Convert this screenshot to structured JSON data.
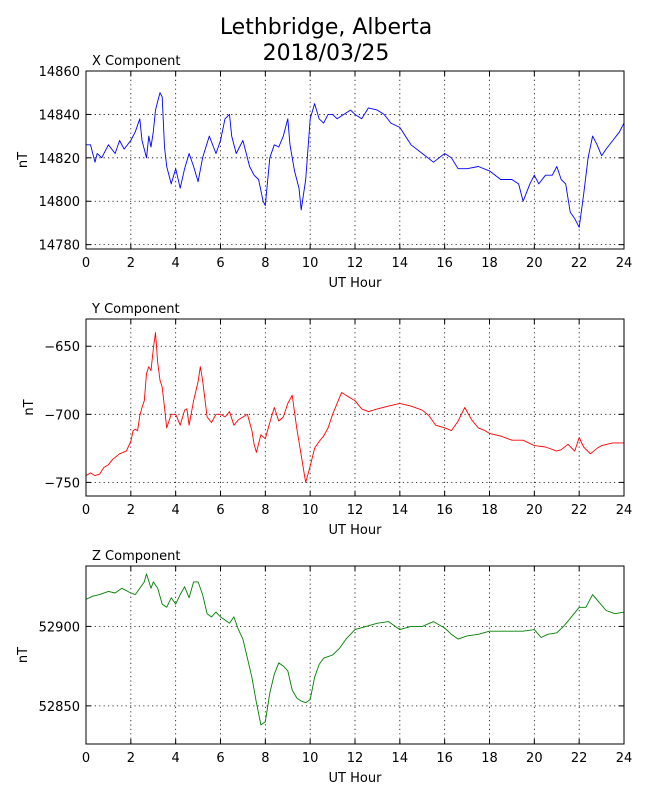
{
  "figure": {
    "title_line1": "Lethbridge, Alberta",
    "title_line2": "2018/03/25"
  },
  "chart_data": [
    {
      "type": "line",
      "panel_title": "X Component",
      "xlabel": "UT Hour",
      "ylabel": "nT",
      "xlim": [
        0,
        24
      ],
      "ylim": [
        14778,
        14860
      ],
      "xticks": [
        0,
        2,
        4,
        6,
        8,
        10,
        12,
        14,
        16,
        18,
        20,
        22,
        24
      ],
      "yticks": [
        14780,
        14800,
        14820,
        14840,
        14860
      ],
      "grid": true,
      "color": "#0000ff",
      "series": [
        {
          "x": [
            0,
            0.2,
            0.4,
            0.5,
            0.7,
            1.0,
            1.3,
            1.5,
            1.7,
            2.0,
            2.2,
            2.4,
            2.5,
            2.7,
            2.8,
            2.9,
            3.0,
            3.1,
            3.2,
            3.3,
            3.4,
            3.5,
            3.6,
            3.8,
            4.0,
            4.2,
            4.4,
            4.6,
            4.8,
            5.0,
            5.2,
            5.5,
            5.8,
            6.0,
            6.2,
            6.4,
            6.5,
            6.7,
            7.0,
            7.3,
            7.5,
            7.7,
            7.9,
            8.0,
            8.2,
            8.4,
            8.6,
            8.8,
            9.0,
            9.1,
            9.3,
            9.5,
            9.6,
            9.8,
            10.0,
            10.2,
            10.4,
            10.6,
            10.8,
            11.0,
            11.2,
            11.5,
            11.8,
            12.0,
            12.3,
            12.6,
            13.0,
            13.3,
            13.6,
            14.0,
            14.5,
            15.0,
            15.5,
            16.0,
            16.3,
            16.6,
            17.0,
            17.5,
            18.0,
            18.5,
            19.0,
            19.3,
            19.5,
            19.8,
            20.0,
            20.2,
            20.5,
            20.8,
            21.0,
            21.2,
            21.4,
            21.6,
            21.8,
            22.0,
            22.2,
            22.4,
            22.6,
            22.8,
            23.0,
            23.2,
            23.5,
            23.8,
            24.0
          ],
          "values": [
            14826,
            14826,
            14818,
            14822,
            14820,
            14826,
            14822,
            14828,
            14824,
            14828,
            14832,
            14838,
            14828,
            14820,
            14830,
            14825,
            14832,
            14842,
            14846,
            14850,
            14848,
            14825,
            14816,
            14808,
            14815,
            14806,
            14815,
            14822,
            14816,
            14809,
            14820,
            14830,
            14822,
            14828,
            14838,
            14840,
            14830,
            14822,
            14828,
            14816,
            14812,
            14810,
            14800,
            14798,
            14820,
            14826,
            14825,
            14830,
            14838,
            14826,
            14814,
            14806,
            14796,
            14810,
            14838,
            14845,
            14838,
            14836,
            14840,
            14840,
            14838,
            14840,
            14842,
            14840,
            14838,
            14843,
            14842,
            14840,
            14836,
            14834,
            14826,
            14822,
            14818,
            14822,
            14820,
            14815,
            14815,
            14816,
            14814,
            14810,
            14810,
            14808,
            14800,
            14808,
            14812,
            14808,
            14812,
            14812,
            14816,
            14810,
            14808,
            14795,
            14792,
            14788,
            14803,
            14820,
            14830,
            14826,
            14821,
            14824,
            14828,
            14832,
            14836
          ]
        }
      ]
    },
    {
      "type": "line",
      "panel_title": "Y Component",
      "xlabel": "UT Hour",
      "ylabel": "nT",
      "xlim": [
        0,
        24
      ],
      "ylim": [
        -760,
        -630
      ],
      "xticks": [
        0,
        2,
        4,
        6,
        8,
        10,
        12,
        14,
        16,
        18,
        20,
        22,
        24
      ],
      "yticks": [
        -650,
        -700,
        -750
      ],
      "grid": true,
      "color": "#ff0000",
      "series": [
        {
          "x": [
            0,
            0.2,
            0.4,
            0.6,
            0.8,
            1.0,
            1.2,
            1.5,
            1.8,
            2.0,
            2.1,
            2.2,
            2.3,
            2.4,
            2.5,
            2.6,
            2.7,
            2.8,
            2.9,
            3.0,
            3.1,
            3.2,
            3.3,
            3.4,
            3.5,
            3.6,
            3.8,
            4.0,
            4.2,
            4.4,
            4.5,
            4.6,
            4.8,
            5.0,
            5.1,
            5.2,
            5.4,
            5.6,
            5.8,
            6.0,
            6.2,
            6.4,
            6.6,
            6.8,
            7.0,
            7.2,
            7.4,
            7.5,
            7.6,
            7.8,
            8.0,
            8.2,
            8.4,
            8.6,
            8.8,
            9.0,
            9.2,
            9.4,
            9.6,
            9.7,
            9.8,
            10.0,
            10.2,
            10.4,
            10.6,
            10.8,
            11.0,
            11.2,
            11.4,
            11.6,
            11.8,
            12.0,
            12.3,
            12.6,
            13.0,
            13.5,
            14.0,
            14.5,
            15.0,
            15.3,
            15.6,
            16.0,
            16.3,
            16.6,
            16.9,
            17.2,
            17.5,
            17.8,
            18.0,
            18.5,
            19.0,
            19.5,
            20.0,
            20.5,
            21.0,
            21.2,
            21.5,
            21.8,
            22.0,
            22.2,
            22.5,
            22.8,
            23.0,
            23.5,
            24.0
          ],
          "values": [
            -745,
            -743,
            -745,
            -744,
            -739,
            -737,
            -733,
            -729,
            -727,
            -720,
            -712,
            -711,
            -712,
            -701,
            -695,
            -690,
            -670,
            -665,
            -668,
            -652,
            -640,
            -662,
            -675,
            -680,
            -695,
            -710,
            -700,
            -700,
            -708,
            -697,
            -696,
            -708,
            -690,
            -676,
            -665,
            -675,
            -702,
            -706,
            -700,
            -700,
            -702,
            -698,
            -708,
            -704,
            -702,
            -700,
            -712,
            -722,
            -728,
            -715,
            -718,
            -706,
            -695,
            -705,
            -702,
            -692,
            -686,
            -710,
            -730,
            -740,
            -750,
            -738,
            -725,
            -720,
            -716,
            -710,
            -700,
            -692,
            -684,
            -686,
            -688,
            -690,
            -696,
            -698,
            -696,
            -694,
            -692,
            -694,
            -697,
            -701,
            -708,
            -710,
            -712,
            -705,
            -695,
            -704,
            -710,
            -712,
            -714,
            -716,
            -719,
            -719,
            -723,
            -724,
            -727,
            -726,
            -722,
            -727,
            -717,
            -724,
            -729,
            -725,
            -723,
            -721,
            -721
          ]
        }
      ]
    },
    {
      "type": "line",
      "panel_title": "Z Component",
      "xlabel": "UT Hour",
      "ylabel": "nT",
      "xlim": [
        0,
        24
      ],
      "ylim": [
        52826,
        52938
      ],
      "xticks": [
        0,
        2,
        4,
        6,
        8,
        10,
        12,
        14,
        16,
        18,
        20,
        22,
        24
      ],
      "yticks": [
        52850,
        52900
      ],
      "grid": true,
      "color": "#008000",
      "series": [
        {
          "x": [
            0,
            0.3,
            0.6,
            1.0,
            1.3,
            1.6,
            2.0,
            2.2,
            2.4,
            2.6,
            2.7,
            2.9,
            3.0,
            3.2,
            3.4,
            3.6,
            3.8,
            4.0,
            4.2,
            4.4,
            4.6,
            4.8,
            5.0,
            5.2,
            5.4,
            5.6,
            5.8,
            6.0,
            6.2,
            6.4,
            6.6,
            6.8,
            7.0,
            7.2,
            7.4,
            7.6,
            7.8,
            8.0,
            8.2,
            8.4,
            8.6,
            8.8,
            9.0,
            9.2,
            9.4,
            9.6,
            9.8,
            10.0,
            10.2,
            10.4,
            10.6,
            10.8,
            11.0,
            11.3,
            11.6,
            12.0,
            12.5,
            13.0,
            13.5,
            14.0,
            14.5,
            15.0,
            15.5,
            16.0,
            16.3,
            16.6,
            17.0,
            17.5,
            18.0,
            18.5,
            19.0,
            19.5,
            20.0,
            20.3,
            20.6,
            21.0,
            21.3,
            21.6,
            22.0,
            22.3,
            22.6,
            22.9,
            23.2,
            23.6,
            24.0
          ],
          "values": [
            52917,
            52919,
            52920,
            52922,
            52921,
            52924,
            52921,
            52920,
            52924,
            52928,
            52933,
            52924,
            52928,
            52924,
            52914,
            52912,
            52918,
            52914,
            52920,
            52925,
            52918,
            52928,
            52928,
            52920,
            52908,
            52906,
            52909,
            52906,
            52904,
            52902,
            52906,
            52898,
            52892,
            52880,
            52868,
            52852,
            52838,
            52840,
            52858,
            52870,
            52877,
            52875,
            52872,
            52860,
            52855,
            52853,
            52852,
            52854,
            52868,
            52876,
            52880,
            52881,
            52882,
            52886,
            52892,
            52898,
            52900,
            52902,
            52903,
            52898,
            52900,
            52900,
            52903,
            52899,
            52895,
            52892,
            52894,
            52895,
            52897,
            52897,
            52897,
            52897,
            52898,
            52893,
            52895,
            52896,
            52900,
            52905,
            52912,
            52912,
            52920,
            52915,
            52910,
            52908,
            52909
          ]
        }
      ]
    }
  ]
}
